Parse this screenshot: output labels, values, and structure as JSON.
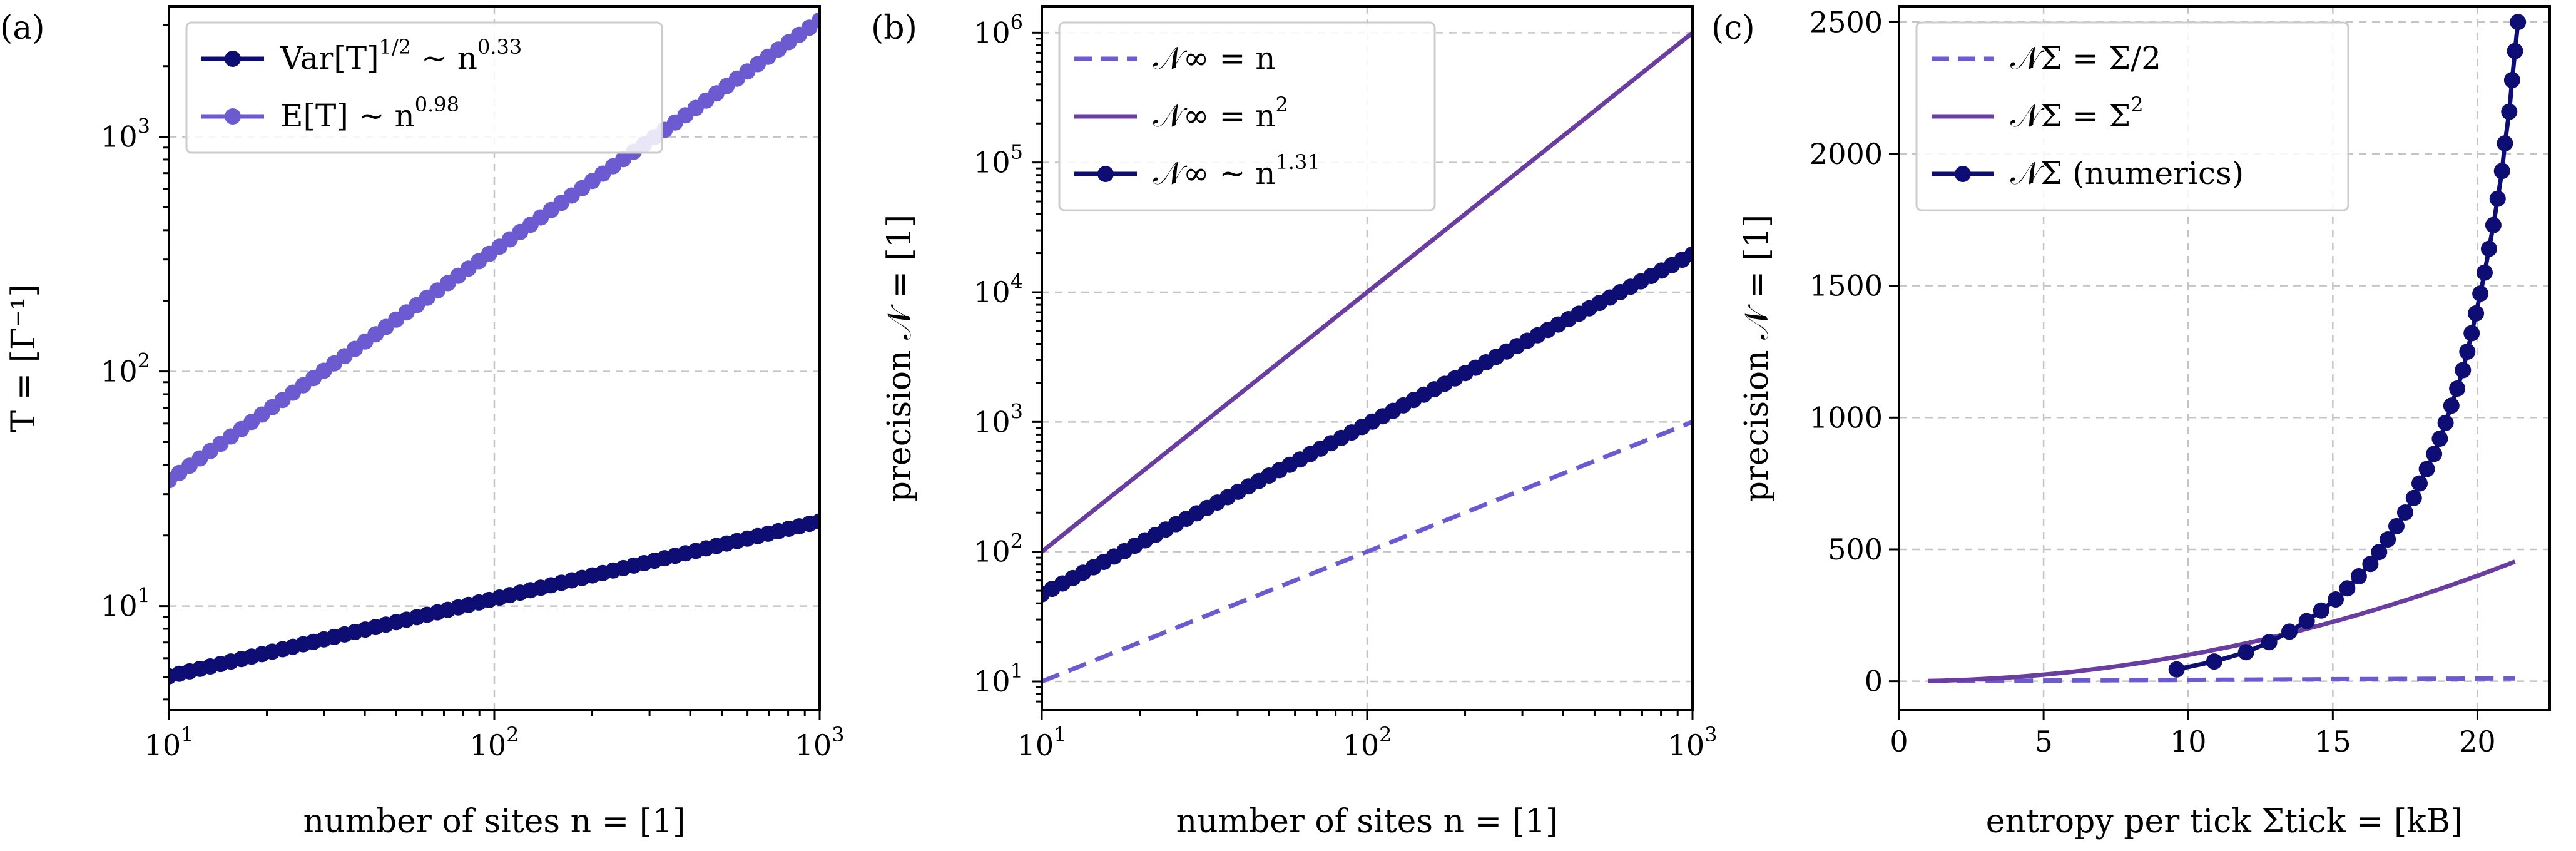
{
  "colors": {
    "navy": "#0d0d73",
    "lavender": "#6c5bd0",
    "purple": "#6a3ea0",
    "grid": "#c4c4c4"
  },
  "chart_data": [
    {
      "id": "a",
      "type": "scatter",
      "panel_label": "(a)",
      "xlabel": "number of sites n = [1]",
      "ylabel": "T = [Γ⁻¹]",
      "xscale": "log",
      "yscale": "log",
      "xlim": [
        10,
        1000
      ],
      "ylim": [
        3.6,
        3600
      ],
      "x_ticks": [
        10,
        100,
        1000
      ],
      "x_tick_labels": [
        {
          "base": "10",
          "exp": "1"
        },
        {
          "base": "10",
          "exp": "2"
        },
        {
          "base": "10",
          "exp": "3"
        }
      ],
      "y_ticks": [
        10,
        100,
        1000
      ],
      "y_tick_labels": [
        {
          "base": "10",
          "exp": "1"
        },
        {
          "base": "10",
          "exp": "2"
        },
        {
          "base": "10",
          "exp": "3"
        }
      ],
      "grid": true,
      "legend_position": "top-left",
      "series": [
        {
          "name": "Var[T]^{1/2} ~ n^{0.33}",
          "legend_main": "Var[T]",
          "legend_sup1": "1/2",
          "legend_mid": " ~ n",
          "legend_sup2": "0.33",
          "color": "navy",
          "style": "line-marker",
          "law": {
            "coef": 2.35,
            "exp": 0.33
          },
          "n_points": 64,
          "x_min": 10,
          "x_max": 1000
        },
        {
          "name": "E[T] ~ n^{0.98}",
          "legend_main": "E[T] ~ n",
          "legend_sup2": "0.98",
          "color": "lavender",
          "style": "line-marker",
          "law": {
            "coef": 3.6,
            "exp": 0.98
          },
          "n_points": 64,
          "x_min": 10,
          "x_max": 1000
        }
      ]
    },
    {
      "id": "b",
      "type": "line",
      "panel_label": "(b)",
      "xlabel": "number of sites n = [1]",
      "ylabel": "precision 𝒩 = [1]",
      "xscale": "log",
      "yscale": "log",
      "xlim": [
        10,
        1000
      ],
      "ylim": [
        6,
        1600000
      ],
      "x_ticks": [
        10,
        100,
        1000
      ],
      "x_tick_labels": [
        {
          "base": "10",
          "exp": "1"
        },
        {
          "base": "10",
          "exp": "2"
        },
        {
          "base": "10",
          "exp": "3"
        }
      ],
      "y_ticks": [
        10,
        100,
        1000,
        10000,
        100000,
        1000000
      ],
      "y_tick_labels": [
        {
          "base": "10",
          "exp": "1"
        },
        {
          "base": "10",
          "exp": "2"
        },
        {
          "base": "10",
          "exp": "3"
        },
        {
          "base": "10",
          "exp": "4"
        },
        {
          "base": "10",
          "exp": "5"
        },
        {
          "base": "10",
          "exp": "6"
        }
      ],
      "grid": true,
      "legend_position": "top-left",
      "series": [
        {
          "name": "𝒩∞ = n",
          "legend_main": "𝒩∞ = n",
          "color": "lavender",
          "style": "dashed",
          "law": {
            "coef": 1,
            "exp": 1
          },
          "x_min": 10,
          "x_max": 1000
        },
        {
          "name": "𝒩∞ = n^2",
          "legend_main": "𝒩∞ = n",
          "legend_sup2": "2",
          "color": "purple",
          "style": "solid",
          "law": {
            "coef": 1,
            "exp": 2
          },
          "x_min": 10,
          "x_max": 1000
        },
        {
          "name": "𝒩∞ ~ n^{1.31}",
          "legend_main": "𝒩∞ ~ n",
          "legend_sup2": "1.31",
          "color": "navy",
          "style": "line-marker",
          "law": {
            "coef": 2.3,
            "exp": 1.31
          },
          "n_points": 64,
          "x_min": 10,
          "x_max": 1000
        }
      ]
    },
    {
      "id": "c",
      "type": "line",
      "panel_label": "(c)",
      "xlabel": "entropy per tick Σtick = [kB]",
      "ylabel": "precision 𝒩 = [1]",
      "xscale": "linear",
      "yscale": "linear",
      "xlim": [
        0,
        22.5
      ],
      "ylim": [
        -110,
        2560
      ],
      "x_ticks": [
        0,
        5,
        10,
        15,
        20
      ],
      "x_tick_labels": [
        "0",
        "5",
        "10",
        "15",
        "20"
      ],
      "y_ticks": [
        0,
        500,
        1000,
        1500,
        2000,
        2500
      ],
      "y_tick_labels": [
        "0",
        "500",
        "1000",
        "1500",
        "2000",
        "2500"
      ],
      "grid": true,
      "legend_position": "top-left",
      "series": [
        {
          "name": "𝒩Σ = Σ/2",
          "legend_main": "𝒩Σ = Σ/2",
          "color": "lavender",
          "style": "dashed",
          "x_min": 1,
          "x_max": 21.3,
          "formula": "half"
        },
        {
          "name": "𝒩Σ = Σ^2",
          "legend_main": "𝒩Σ = Σ",
          "legend_sup2": "2",
          "color": "purple",
          "style": "solid",
          "x_min": 1,
          "x_max": 21.3,
          "formula": "square"
        },
        {
          "name": "𝒩Σ (numerics)",
          "legend_main": "𝒩Σ (numerics)",
          "color": "navy",
          "style": "line-marker",
          "x": [
            9.6,
            10.9,
            12.0,
            12.8,
            13.5,
            14.1,
            14.6,
            15.1,
            15.5,
            15.9,
            16.3,
            16.6,
            16.9,
            17.2,
            17.5,
            17.8,
            18.0,
            18.25,
            18.5,
            18.7,
            18.9,
            19.1,
            19.3,
            19.5,
            19.65,
            19.8,
            19.95,
            20.1,
            20.25,
            20.4,
            20.55,
            20.7,
            20.85,
            20.95,
            21.1,
            21.2,
            21.3,
            21.4
          ],
          "y": [
            45,
            75,
            110,
            148,
            188,
            228,
            268,
            310,
            352,
            398,
            445,
            490,
            538,
            588,
            640,
            695,
            750,
            805,
            862,
            920,
            980,
            1045,
            1110,
            1180,
            1250,
            1320,
            1395,
            1470,
            1550,
            1640,
            1730,
            1830,
            1935,
            2040,
            2160,
            2280,
            2390,
            2500
          ]
        }
      ]
    }
  ]
}
